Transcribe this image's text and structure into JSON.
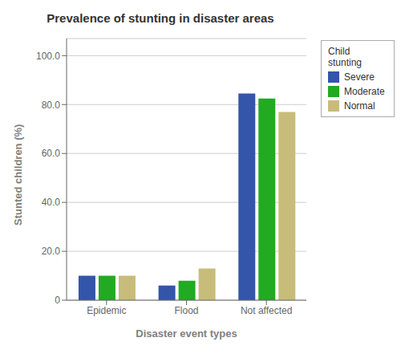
{
  "chart_data": {
    "type": "bar",
    "title": "Prevalence of stunting in disaster areas",
    "xlabel": "Disaster event types",
    "ylabel": "Stunted children (%)",
    "categories": [
      "Epidemic",
      "Flood",
      "Not affected"
    ],
    "series": [
      {
        "name": "Severe",
        "color": "#3355aa",
        "values": [
          10.0,
          6.0,
          84.5
        ]
      },
      {
        "name": "Moderate",
        "color": "#22aa22",
        "values": [
          10.0,
          8.0,
          82.5
        ]
      },
      {
        "name": "Normal",
        "color": "#c8bc7a",
        "values": [
          10.0,
          13.0,
          77.0
        ]
      }
    ],
    "ylim": [
      0,
      107
    ],
    "yticks": [
      0,
      {
        "value": 20,
        "label": "20.0"
      },
      {
        "value": 40,
        "label": "40.0"
      },
      {
        "value": 60,
        "label": "60.0"
      },
      {
        "value": 80,
        "label": "80.0"
      },
      {
        "value": 100,
        "label": "100.0"
      }
    ],
    "grid": true,
    "legend": "right",
    "legend_title": "Child\nstunting"
  }
}
